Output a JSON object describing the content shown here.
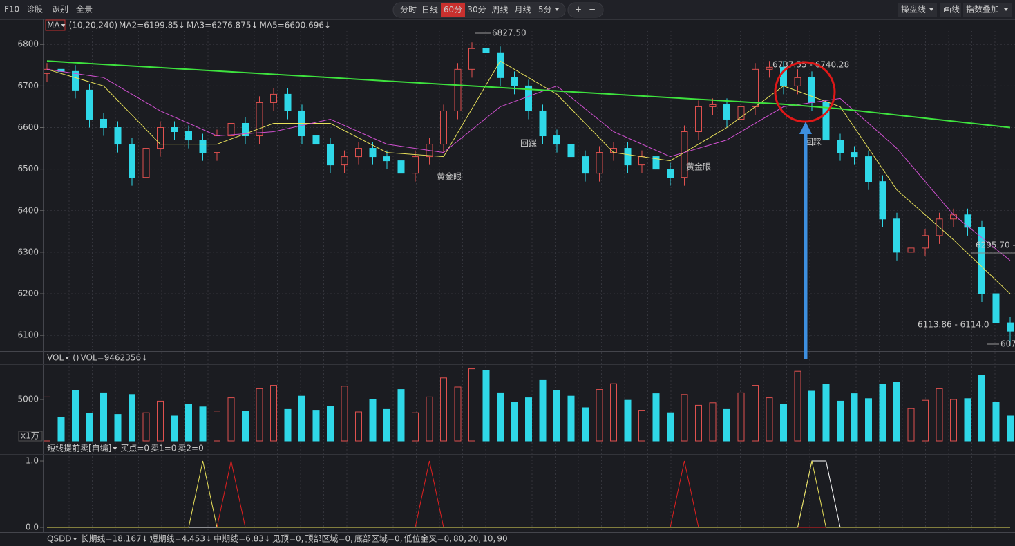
{
  "toolbar": {
    "left": [
      "F10",
      "诊股",
      "识别",
      "全景"
    ],
    "tabs": [
      "分时",
      "日线",
      "60分",
      "30分",
      "周线",
      "月线",
      "5分"
    ],
    "active_tab": 2,
    "zoom": [
      "+",
      "−"
    ],
    "right": [
      "操盘线",
      "画线",
      "指数叠加"
    ]
  },
  "chart_data": [
    {
      "type": "candlestick",
      "indicator": "MA",
      "legend": [
        {
          "text": "(10,20,240)",
          "color": "#e8e05a"
        },
        {
          "text": "MA2=6199.85↓",
          "color": "#e8e05a"
        },
        {
          "text": "MA3=6276.875↓",
          "color": "#e060e0"
        },
        {
          "text": "MA5=6600.696↓",
          "color": "#3ee23e"
        }
      ],
      "up_color": "#e0514f",
      "down_color": "#2fd8e8",
      "ylim": [
        6062,
        6832
      ],
      "yticks": [
        6100,
        6200,
        6300,
        6400,
        6500,
        6600,
        6700,
        6800
      ],
      "grid": true,
      "open": [
        6730,
        6740,
        6735,
        6690,
        6620,
        6600,
        6560,
        6480,
        6550,
        6600,
        6590,
        6570,
        6540,
        6580,
        6610,
        6580,
        6660,
        6680,
        6640,
        6580,
        6560,
        6510,
        6530,
        6550,
        6530,
        6520,
        6490,
        6530,
        6560,
        6640,
        6740,
        6790,
        6780,
        6720,
        6700,
        6640,
        6580,
        6560,
        6530,
        6490,
        6540,
        6550,
        6510,
        6530,
        6500,
        6480,
        6590,
        6650,
        6655,
        6620,
        6650,
        6740,
        6745,
        6700,
        6720,
        6660,
        6570,
        6540,
        6530,
        6470,
        6380,
        6300,
        6310,
        6340,
        6380,
        6390,
        6360,
        6200,
        6130
      ],
      "high": [
        6755,
        6755,
        6750,
        6705,
        6635,
        6615,
        6575,
        6565,
        6615,
        6615,
        6605,
        6585,
        6595,
        6625,
        6625,
        6675,
        6695,
        6695,
        6655,
        6595,
        6575,
        6545,
        6565,
        6565,
        6545,
        6535,
        6545,
        6575,
        6655,
        6755,
        6805,
        6827.5,
        6795,
        6735,
        6715,
        6655,
        6595,
        6575,
        6545,
        6555,
        6565,
        6565,
        6545,
        6545,
        6515,
        6605,
        6665,
        6670,
        6670,
        6665,
        6755,
        6760,
        6760,
        6740.28,
        6735,
        6675,
        6585,
        6555,
        6545,
        6485,
        6395,
        6325,
        6355,
        6395,
        6405,
        6405,
        6375,
        6215,
        6145
      ],
      "low": [
        6710,
        6715,
        6670,
        6600,
        6580,
        6540,
        6460,
        6460,
        6530,
        6570,
        6550,
        6520,
        6520,
        6560,
        6560,
        6560,
        6640,
        6620,
        6560,
        6540,
        6490,
        6490,
        6510,
        6510,
        6500,
        6470,
        6470,
        6510,
        6540,
        6620,
        6720,
        6760,
        6700,
        6680,
        6620,
        6560,
        6540,
        6510,
        6470,
        6470,
        6520,
        6490,
        6490,
        6480,
        6460,
        6460,
        6570,
        6630,
        6600,
        6600,
        6630,
        6720,
        6680,
        6680,
        6640,
        6550,
        6520,
        6510,
        6450,
        6360,
        6280,
        6280,
        6290,
        6320,
        6360,
        6340,
        6180,
        6110,
        6075
      ],
      "close": [
        6740,
        6735,
        6690,
        6620,
        6600,
        6560,
        6480,
        6550,
        6600,
        6590,
        6570,
        6540,
        6580,
        6610,
        6580,
        6660,
        6680,
        6640,
        6580,
        6560,
        6510,
        6530,
        6550,
        6530,
        6520,
        6490,
        6530,
        6560,
        6640,
        6740,
        6790,
        6780,
        6720,
        6700,
        6640,
        6580,
        6560,
        6530,
        6490,
        6540,
        6550,
        6510,
        6530,
        6500,
        6480,
        6590,
        6650,
        6655,
        6620,
        6650,
        6740,
        6745,
        6700,
        6720,
        6660,
        6570,
        6540,
        6530,
        6470,
        6380,
        6300,
        6310,
        6340,
        6380,
        6390,
        6360,
        6200,
        6130,
        6110
      ],
      "lines": [
        {
          "color": "#e8e05a",
          "x": [
            0,
            4,
            8,
            12,
            16,
            20,
            24,
            28,
            32,
            36,
            40,
            44,
            48,
            52,
            56,
            60,
            64,
            68
          ],
          "values": [
            6740,
            6700,
            6560,
            6560,
            6610,
            6610,
            6540,
            6530,
            6760,
            6680,
            6540,
            6520,
            6600,
            6700,
            6650,
            6450,
            6330,
            6200
          ]
        },
        {
          "color": "#d050d0",
          "x": [
            0,
            4,
            8,
            12,
            16,
            20,
            24,
            28,
            32,
            36,
            40,
            44,
            48,
            52,
            56,
            60,
            64,
            68
          ],
          "values": [
            6740,
            6720,
            6640,
            6580,
            6590,
            6620,
            6560,
            6540,
            6650,
            6700,
            6590,
            6530,
            6570,
            6650,
            6670,
            6550,
            6390,
            6280
          ]
        },
        {
          "color": "#3ee23e",
          "x": [
            0,
            4,
            8,
            12,
            16,
            20,
            24,
            28,
            32,
            36,
            40,
            44,
            48,
            52,
            56,
            60,
            64,
            68
          ],
          "values": [
            6760,
            6752,
            6744,
            6736,
            6728,
            6720,
            6712,
            6704,
            6696,
            6688,
            6680,
            6672,
            6664,
            6656,
            6645,
            6630,
            6615,
            6600
          ]
        }
      ],
      "annotations": [
        "6827.50",
        "6737.55 - 6740.28",
        "6295.70 - 6",
        "6113.86 - 6114.0",
        "607",
        "黄金眼",
        "黄金眼",
        "回踩",
        "回踩"
      ]
    },
    {
      "type": "bar",
      "indicator": "VOL",
      "legend": [
        "()",
        "VOL=9462356↓"
      ],
      "unit_label": "x1万",
      "ylim": [
        0,
        9167
      ],
      "yticks": [
        5000
      ],
      "values": [
        5300,
        2800,
        6100,
        3300,
        5800,
        3200,
        5600,
        3400,
        4800,
        3000,
        4400,
        4100,
        3600,
        5200,
        3600,
        6300,
        6700,
        3800,
        5400,
        3700,
        4200,
        6600,
        3500,
        5000,
        3800,
        6200,
        3400,
        5300,
        7600,
        6500,
        8700,
        8500,
        5800,
        4700,
        5200,
        7300,
        6100,
        5400,
        4000,
        6200,
        6900,
        4900,
        3700,
        5700,
        3400,
        5600,
        4300,
        4600,
        3800,
        5800,
        6700,
        5200,
        4400,
        8400,
        6000,
        6800,
        4800,
        5700,
        5100,
        6800,
        7100,
        3900,
        4900,
        6300,
        5000,
        5100,
        7900,
        4700,
        3000
      ]
    },
    {
      "type": "line",
      "indicator": "短线提前卖[自编]",
      "ylim": [
        -0.073,
        1.094
      ],
      "yticks": [
        {
          "value": 0,
          "label": "0.0"
        },
        {
          "value": 1,
          "label": "1.0"
        }
      ],
      "series": [
        {
          "name": "买点=0",
          "color": "#e02020",
          "values": [
            0,
            0,
            0,
            0,
            0,
            0,
            0,
            0,
            0,
            0,
            0,
            0,
            0,
            1,
            0,
            0,
            0,
            0,
            0,
            0,
            0,
            0,
            0,
            0,
            0,
            0,
            0,
            1,
            0,
            0,
            0,
            0,
            0,
            0,
            0,
            0,
            0,
            0,
            0,
            0,
            0,
            0,
            0,
            0,
            0,
            1,
            0,
            0,
            0,
            0,
            0,
            0,
            0,
            0,
            0,
            0,
            0,
            0,
            0,
            0,
            0,
            0,
            0,
            0,
            0,
            0,
            0,
            0,
            0
          ]
        },
        {
          "name": "卖1=0",
          "color": "#ffffff",
          "values": [
            0,
            0,
            0,
            0,
            0,
            0,
            0,
            0,
            0,
            0,
            0,
            0,
            0,
            0,
            0,
            0,
            0,
            0,
            0,
            0,
            0,
            0,
            0,
            0,
            0,
            0,
            0,
            0,
            0,
            0,
            0,
            0,
            0,
            0,
            0,
            0,
            0,
            0,
            0,
            0,
            0,
            0,
            0,
            0,
            0,
            0,
            0,
            0,
            0,
            0,
            0,
            0,
            0,
            0,
            1,
            1,
            0,
            0,
            0,
            0,
            0,
            0,
            0,
            0,
            0,
            0,
            0,
            0,
            0
          ]
        },
        {
          "name": "卖2=0",
          "color": "#e8e05a",
          "values": [
            0,
            0,
            0,
            0,
            0,
            0,
            0,
            0,
            0,
            0,
            0,
            1,
            0,
            0,
            0,
            0,
            0,
            0,
            0,
            0,
            0,
            0,
            0,
            0,
            0,
            0,
            0,
            0,
            0,
            0,
            0,
            0,
            0,
            0,
            0,
            0,
            0,
            0,
            0,
            0,
            0,
            0,
            0,
            0,
            0,
            0,
            0,
            0,
            0,
            0,
            0,
            0,
            0,
            0,
            1,
            0,
            0,
            0,
            0,
            0,
            0,
            0,
            0,
            0,
            0,
            0,
            0,
            0,
            0
          ]
        }
      ]
    }
  ],
  "footer": {
    "indicator": "QSDD",
    "items": [
      {
        "text": "长期线=18.167↓",
        "color": "#ff3fae"
      },
      {
        "text": "短期线=4.453↓",
        "color": "#bbbbbb"
      },
      {
        "text": "中期线=6.83↓",
        "color": "#f0e060"
      },
      {
        "text": "见顶=0,",
        "color": "#bbbbbb"
      },
      {
        "text": "顶部区域=0,",
        "color": "#bbbbbb"
      },
      {
        "text": "底部区域=0,",
        "color": "#e08a30"
      },
      {
        "text": "低位金叉=0,",
        "color": "#a050c0"
      },
      {
        "text": "80,",
        "color": "#bbbbbb"
      },
      {
        "text": "20,",
        "color": "#3ee23e"
      },
      {
        "text": "10,",
        "color": "#4a7cff"
      },
      {
        "text": "90",
        "color": "#ff3fae"
      }
    ]
  }
}
